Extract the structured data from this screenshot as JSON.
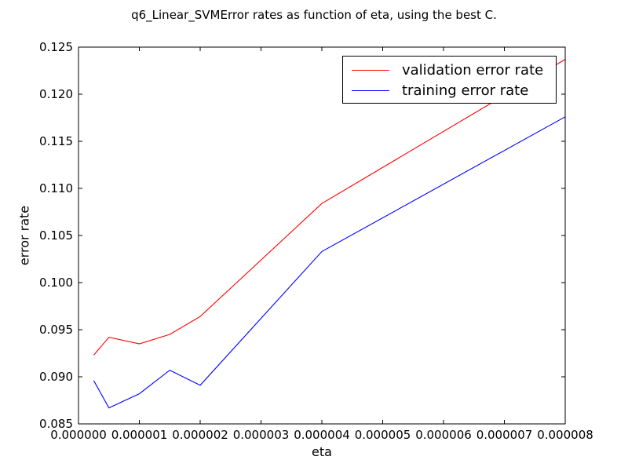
{
  "chart_data": {
    "type": "line",
    "title": "q6_Linear_SVMError rates as function of eta, using the best C.",
    "xlabel": "eta",
    "ylabel": "error rate",
    "xlim": [
      0.0,
      8e-06
    ],
    "ylim": [
      0.085,
      0.125
    ],
    "x_ticks": [
      0.0,
      1e-06,
      2e-06,
      3e-06,
      4e-06,
      5e-06,
      6e-06,
      7e-06,
      8e-06
    ],
    "x_tick_labels": [
      "0.000000",
      "0.000001",
      "0.000002",
      "0.000003",
      "0.000004",
      "0.000005",
      "0.000006",
      "0.000007",
      "0.000008"
    ],
    "y_ticks": [
      0.085,
      0.09,
      0.095,
      0.1,
      0.105,
      0.11,
      0.115,
      0.12,
      0.125
    ],
    "y_tick_labels": [
      "0.085",
      "0.090",
      "0.095",
      "0.100",
      "0.105",
      "0.110",
      "0.115",
      "0.120",
      "0.125"
    ],
    "grid": false,
    "legend_position": "top-right",
    "series": [
      {
        "name": "validation error rate",
        "color": "#ff0000",
        "x": [
          2.5e-07,
          5e-07,
          1e-06,
          1.5e-06,
          2e-06,
          4e-06,
          8e-06
        ],
        "y": [
          0.0923,
          0.0942,
          0.0935,
          0.0945,
          0.0964,
          0.1084,
          0.1237
        ]
      },
      {
        "name": "training error rate",
        "color": "#0000ff",
        "x": [
          2.5e-07,
          5e-07,
          1e-06,
          1.5e-06,
          2e-06,
          4e-06,
          8e-06
        ],
        "y": [
          0.0896,
          0.0867,
          0.0882,
          0.0907,
          0.0891,
          0.1033,
          0.1176
        ]
      }
    ]
  }
}
